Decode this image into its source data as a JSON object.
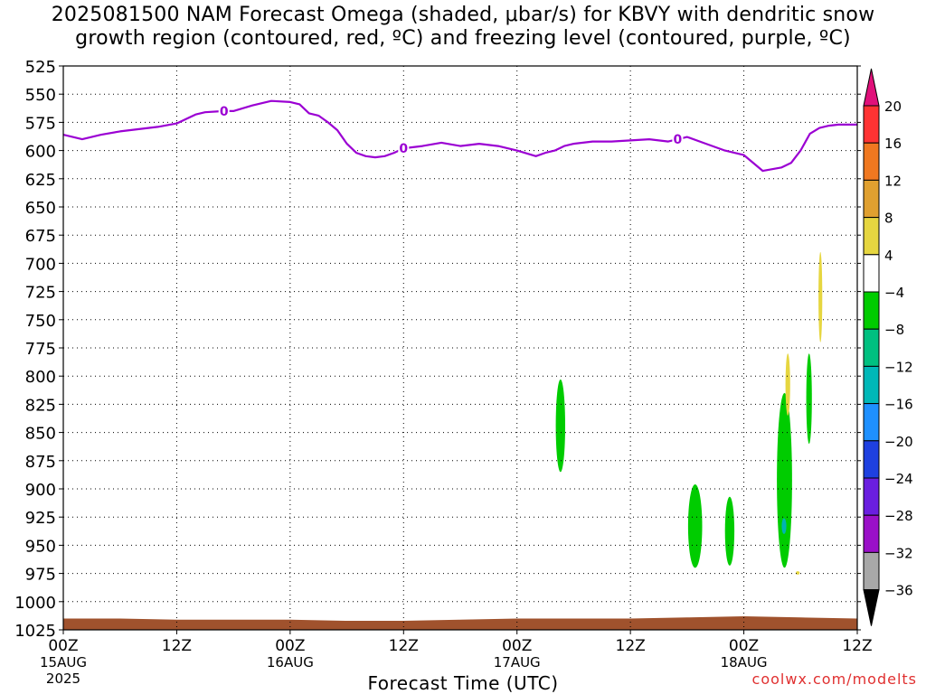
{
  "title": {
    "line1": "2025081500 NAM Forecast Omega (shaded, μbar/s) for KBVY with dendritic snow",
    "line2": "growth region (contoured, red, ºC) and freezing level (contoured, purple, ºC)"
  },
  "watermark": "coolwx.com/modelts",
  "colors": {
    "freezing_line": "#9b00d3",
    "terrain": "#a0522d",
    "green": "#00cc00",
    "yellow": "#e6d640",
    "cyan": "#00b3b3"
  },
  "chart_data": {
    "type": "heatmap",
    "title": "2025081500 NAM Forecast Omega (shaded, μbar/s) for KBVY with dendritic snow growth region (contoured, red, ºC) and freezing level (contoured, purple, ºC)",
    "xlabel": "Forecast Time (UTC)",
    "ylabel": "",
    "x_unit": "forecast hour",
    "xlim": [
      0,
      84
    ],
    "ylim": [
      1025,
      525
    ],
    "x_ticks": [
      {
        "hour": 0,
        "label": "00Z",
        "date": "15AUG",
        "year": "2025"
      },
      {
        "hour": 12,
        "label": "12Z",
        "date": "",
        "year": ""
      },
      {
        "hour": 24,
        "label": "00Z",
        "date": "16AUG",
        "year": ""
      },
      {
        "hour": 36,
        "label": "12Z",
        "date": "",
        "year": ""
      },
      {
        "hour": 48,
        "label": "00Z",
        "date": "17AUG",
        "year": ""
      },
      {
        "hour": 60,
        "label": "12Z",
        "date": "",
        "year": ""
      },
      {
        "hour": 72,
        "label": "00Z",
        "date": "18AUG",
        "year": ""
      },
      {
        "hour": 84,
        "label": "12Z",
        "date": "",
        "year": ""
      }
    ],
    "y_ticks": [
      525,
      550,
      575,
      600,
      625,
      650,
      675,
      700,
      725,
      750,
      775,
      800,
      825,
      850,
      875,
      900,
      925,
      950,
      975,
      1000,
      1025
    ],
    "grid": true,
    "colorbar": {
      "placement": "right",
      "labels": [
        "20",
        "16",
        "12",
        "8",
        "4",
        "−4",
        "−8",
        "−12",
        "−16",
        "−20",
        "−24",
        "−28",
        "−32",
        "−36"
      ],
      "bins": [
        {
          "from": 20,
          "to": null,
          "color": "#e0107a"
        },
        {
          "from": 16,
          "to": 20,
          "color": "#ff3333"
        },
        {
          "from": 12,
          "to": 16,
          "color": "#f07820"
        },
        {
          "from": 8,
          "to": 12,
          "color": "#e0a030"
        },
        {
          "from": 4,
          "to": 8,
          "color": "#e6d640"
        },
        {
          "from": -4,
          "to": 4,
          "color": "#ffffff"
        },
        {
          "from": -8,
          "to": -4,
          "color": "#00cc00"
        },
        {
          "from": -12,
          "to": -8,
          "color": "#00c080"
        },
        {
          "from": -16,
          "to": -12,
          "color": "#00b8b8"
        },
        {
          "from": -20,
          "to": -16,
          "color": "#1e90ff"
        },
        {
          "from": -24,
          "to": -20,
          "color": "#1e40e0"
        },
        {
          "from": -28,
          "to": -24,
          "color": "#6a1ee0"
        },
        {
          "from": -32,
          "to": -28,
          "color": "#9a10c8"
        },
        {
          "from": -36,
          "to": -32,
          "color": "#a8a8a8"
        },
        {
          "from": null,
          "to": -36,
          "color": "#000000"
        }
      ]
    },
    "freezing_level": {
      "label": "0",
      "label_hours": [
        17,
        36,
        65
      ],
      "hours": [
        0,
        2,
        4,
        6,
        8,
        10,
        12,
        14,
        15,
        17,
        18,
        20,
        22,
        24,
        25,
        26,
        27,
        28,
        29,
        30,
        31,
        32,
        33,
        34,
        35,
        36,
        38,
        40,
        42,
        44,
        46,
        48,
        50,
        51,
        52,
        53,
        54,
        56,
        58,
        60,
        62,
        64,
        66,
        68,
        70,
        72,
        74,
        76,
        77,
        78,
        79,
        80,
        81,
        82,
        84
      ],
      "pressure": [
        586,
        590,
        586,
        583,
        581,
        579,
        576,
        568,
        566,
        565,
        565,
        560,
        556,
        557,
        559,
        567,
        569,
        575,
        582,
        594,
        602,
        605,
        606,
        605,
        602,
        598,
        596,
        593,
        596,
        594,
        596,
        600,
        605,
        602,
        600,
        596,
        594,
        592,
        592,
        591,
        590,
        592,
        588,
        594,
        600,
        604,
        618,
        615,
        611,
        600,
        585,
        580,
        578,
        577,
        577
      ]
    },
    "terrain_surface": {
      "hours": [
        0,
        6,
        12,
        18,
        24,
        30,
        36,
        42,
        48,
        54,
        60,
        66,
        72,
        78,
        84
      ],
      "pressure": [
        1015,
        1015,
        1016,
        1016,
        1016,
        1017,
        1017,
        1016,
        1015,
        1015,
        1015,
        1014,
        1013,
        1014,
        1015
      ]
    },
    "omega_regions": [
      {
        "value_range": "-4 to -8",
        "hours": [
          52.1,
          53.1
        ],
        "pressure": [
          803,
          885
        ]
      },
      {
        "value_range": "-4 to -8",
        "hours": [
          66.1,
          67.6
        ],
        "pressure": [
          896,
          970
        ]
      },
      {
        "value_range": "-4 to -8",
        "hours": [
          70.0,
          71.0
        ],
        "pressure": [
          907,
          968
        ]
      },
      {
        "value_range": "-4 to -8",
        "hours": [
          75.5,
          77.1
        ],
        "pressure": [
          815,
          970
        ]
      },
      {
        "value_range": "-8 to -12",
        "hours": [
          76.0,
          76.5
        ],
        "pressure": [
          926,
          940
        ]
      },
      {
        "value_range": "-4 to -8",
        "hours": [
          78.6,
          79.2
        ],
        "pressure": [
          780,
          860
        ]
      },
      {
        "value_range": "4 to 8",
        "hours": [
          76.4,
          76.9
        ],
        "pressure": [
          780,
          835
        ]
      },
      {
        "value_range": "4 to 8",
        "hours": [
          79.9,
          80.3
        ],
        "pressure": [
          690,
          770
        ]
      },
      {
        "value_range": "4 to 8",
        "hours": [
          77.5,
          77.9
        ],
        "pressure": [
          973,
          976
        ]
      }
    ]
  }
}
